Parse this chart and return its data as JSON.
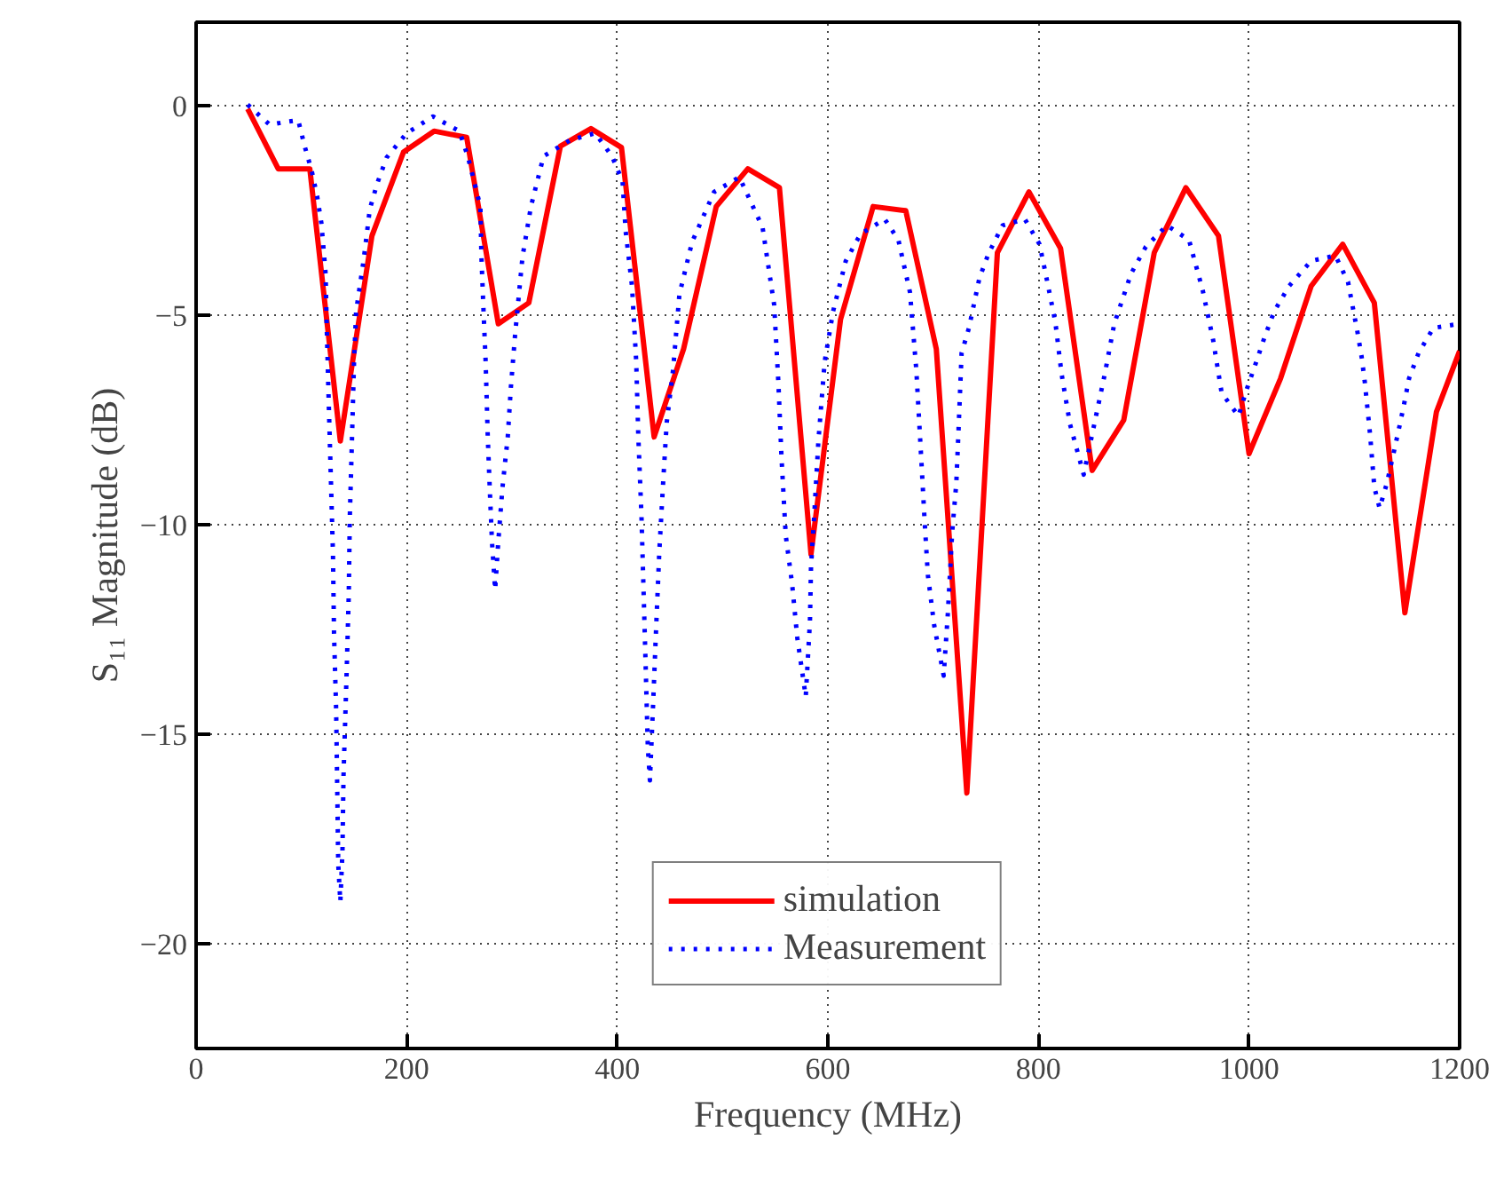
{
  "chart_data": {
    "type": "line",
    "xlabel": "Frequency (MHz)",
    "ylabel": "S₁₁ Magnitude (dB)",
    "xlim": [
      0,
      1200
    ],
    "xticks": [
      0,
      200,
      400,
      600,
      800,
      1000,
      1200
    ],
    "ylim": [
      -22.5,
      2
    ],
    "yticks": [
      -20,
      -15,
      -10,
      -5,
      0
    ],
    "grid": true,
    "legend": "bottom",
    "series": [
      {
        "name": "simulation",
        "color": "#ff0000",
        "line_style": "solid",
        "x": [
          49,
          78,
          108,
          137,
          167,
          197,
          226,
          257,
          287,
          316,
          346,
          375,
          404,
          435,
          463,
          494,
          524,
          554,
          584,
          612,
          643,
          674,
          703,
          732,
          761,
          791,
          821,
          851,
          881,
          910,
          940,
          971,
          1000,
          1030,
          1059,
          1089,
          1119,
          1148,
          1178,
          1200
        ],
        "values": [
          -0.07,
          -1.5,
          -1.5,
          -8.0,
          -3.1,
          -1.1,
          -0.6,
          -0.75,
          -5.2,
          -4.7,
          -0.96,
          -0.54,
          -0.99,
          -7.9,
          -5.8,
          -2.4,
          -1.5,
          -1.95,
          -10.7,
          -5.1,
          -2.4,
          -2.5,
          -5.8,
          -16.4,
          -3.5,
          -2.05,
          -3.4,
          -8.7,
          -7.5,
          -3.5,
          -1.95,
          -3.1,
          -8.3,
          -6.5,
          -4.3,
          -3.3,
          -4.7,
          -12.1,
          -7.3,
          -5.85
        ]
      },
      {
        "name": "Measurement",
        "color": "#0000ff",
        "line_style": "dotted",
        "x": [
          49,
          70,
          85,
          97,
          103,
          110,
          115,
          119,
          123,
          124,
          126,
          128,
          130,
          131,
          133,
          134,
          135,
          137,
          139,
          140,
          143,
          145,
          146,
          148,
          150,
          152,
          159,
          165,
          172,
          181,
          200,
          225,
          250,
          258,
          264,
          270,
          271,
          273,
          275,
          277,
          279,
          281,
          284,
          287,
          291,
          296,
          299,
          303,
          310,
          318,
          330,
          355,
          379,
          395,
          405,
          408,
          414,
          418,
          420,
          423,
          425,
          427,
          429,
          431,
          434,
          437,
          440,
          444,
          447,
          453,
          459,
          471,
          492,
          516,
          538,
          549,
          553,
          556,
          560,
          566,
          571,
          579,
          583,
          584,
          587,
          591,
          597,
          605,
          617,
          631,
          654,
          667,
          678,
          684,
          688,
          692,
          695,
          701,
          710,
          714,
          718,
          722,
          724,
          727,
          734,
          744,
          753,
          766,
          787,
          801,
          806,
          816,
          822,
          830,
          843,
          853,
          863,
          872,
          880,
          888,
          902,
          922,
          943,
          956,
          966,
          974,
          990,
          998,
          1007,
          1015,
          1024,
          1038,
          1059,
          1082,
          1094,
          1103,
          1107,
          1110,
          1115,
          1119,
          1124,
          1131,
          1142,
          1147,
          1152,
          1161,
          1175,
          1200
        ],
        "values": [
          0.03,
          -0.45,
          -0.38,
          -0.34,
          -0.95,
          -1.57,
          -2.16,
          -2.8,
          -4.0,
          -5.2,
          -7.1,
          -8.9,
          -10.7,
          -12.6,
          -14.4,
          -16.2,
          -18.1,
          -19.0,
          -17.8,
          -16.0,
          -13.5,
          -11.65,
          -9.8,
          -8.0,
          -6.1,
          -4.9,
          -3.7,
          -2.46,
          -1.85,
          -1.23,
          -0.65,
          -0.25,
          -0.6,
          -1.2,
          -1.8,
          -2.4,
          -3.6,
          -4.9,
          -6.1,
          -7.9,
          -9.2,
          -10.4,
          -11.55,
          -10.4,
          -9.1,
          -7.9,
          -6.7,
          -5.45,
          -3.6,
          -2.4,
          -1.2,
          -0.82,
          -0.65,
          -1.2,
          -1.8,
          -3.0,
          -4.3,
          -6.1,
          -7.9,
          -9.8,
          -11.6,
          -13.4,
          -15.3,
          -16.1,
          -14.3,
          -12.4,
          -10.6,
          -8.8,
          -7.55,
          -6.3,
          -4.5,
          -3.25,
          -2.05,
          -1.7,
          -2.9,
          -4.75,
          -6.6,
          -8.4,
          -10.25,
          -11.4,
          -12.7,
          -14.1,
          -12.3,
          -11.0,
          -9.8,
          -8.0,
          -6.1,
          -4.9,
          -3.7,
          -3.06,
          -2.7,
          -3.2,
          -4.45,
          -6.3,
          -8.1,
          -9.95,
          -11.2,
          -12.4,
          -13.6,
          -12.1,
          -10.2,
          -9.0,
          -7.8,
          -5.9,
          -5.3,
          -4.1,
          -3.5,
          -2.85,
          -2.7,
          -3.3,
          -3.9,
          -5.15,
          -6.4,
          -7.6,
          -8.8,
          -7.6,
          -6.4,
          -5.2,
          -4.6,
          -4.0,
          -3.36,
          -2.85,
          -3.2,
          -4.4,
          -5.6,
          -6.85,
          -7.4,
          -6.75,
          -6.1,
          -5.5,
          -4.9,
          -4.3,
          -3.7,
          -3.57,
          -4.2,
          -5.4,
          -6.0,
          -6.6,
          -7.85,
          -9.1,
          -9.6,
          -9.0,
          -7.75,
          -7.15,
          -6.5,
          -5.9,
          -5.3,
          -5.2
        ]
      }
    ]
  }
}
